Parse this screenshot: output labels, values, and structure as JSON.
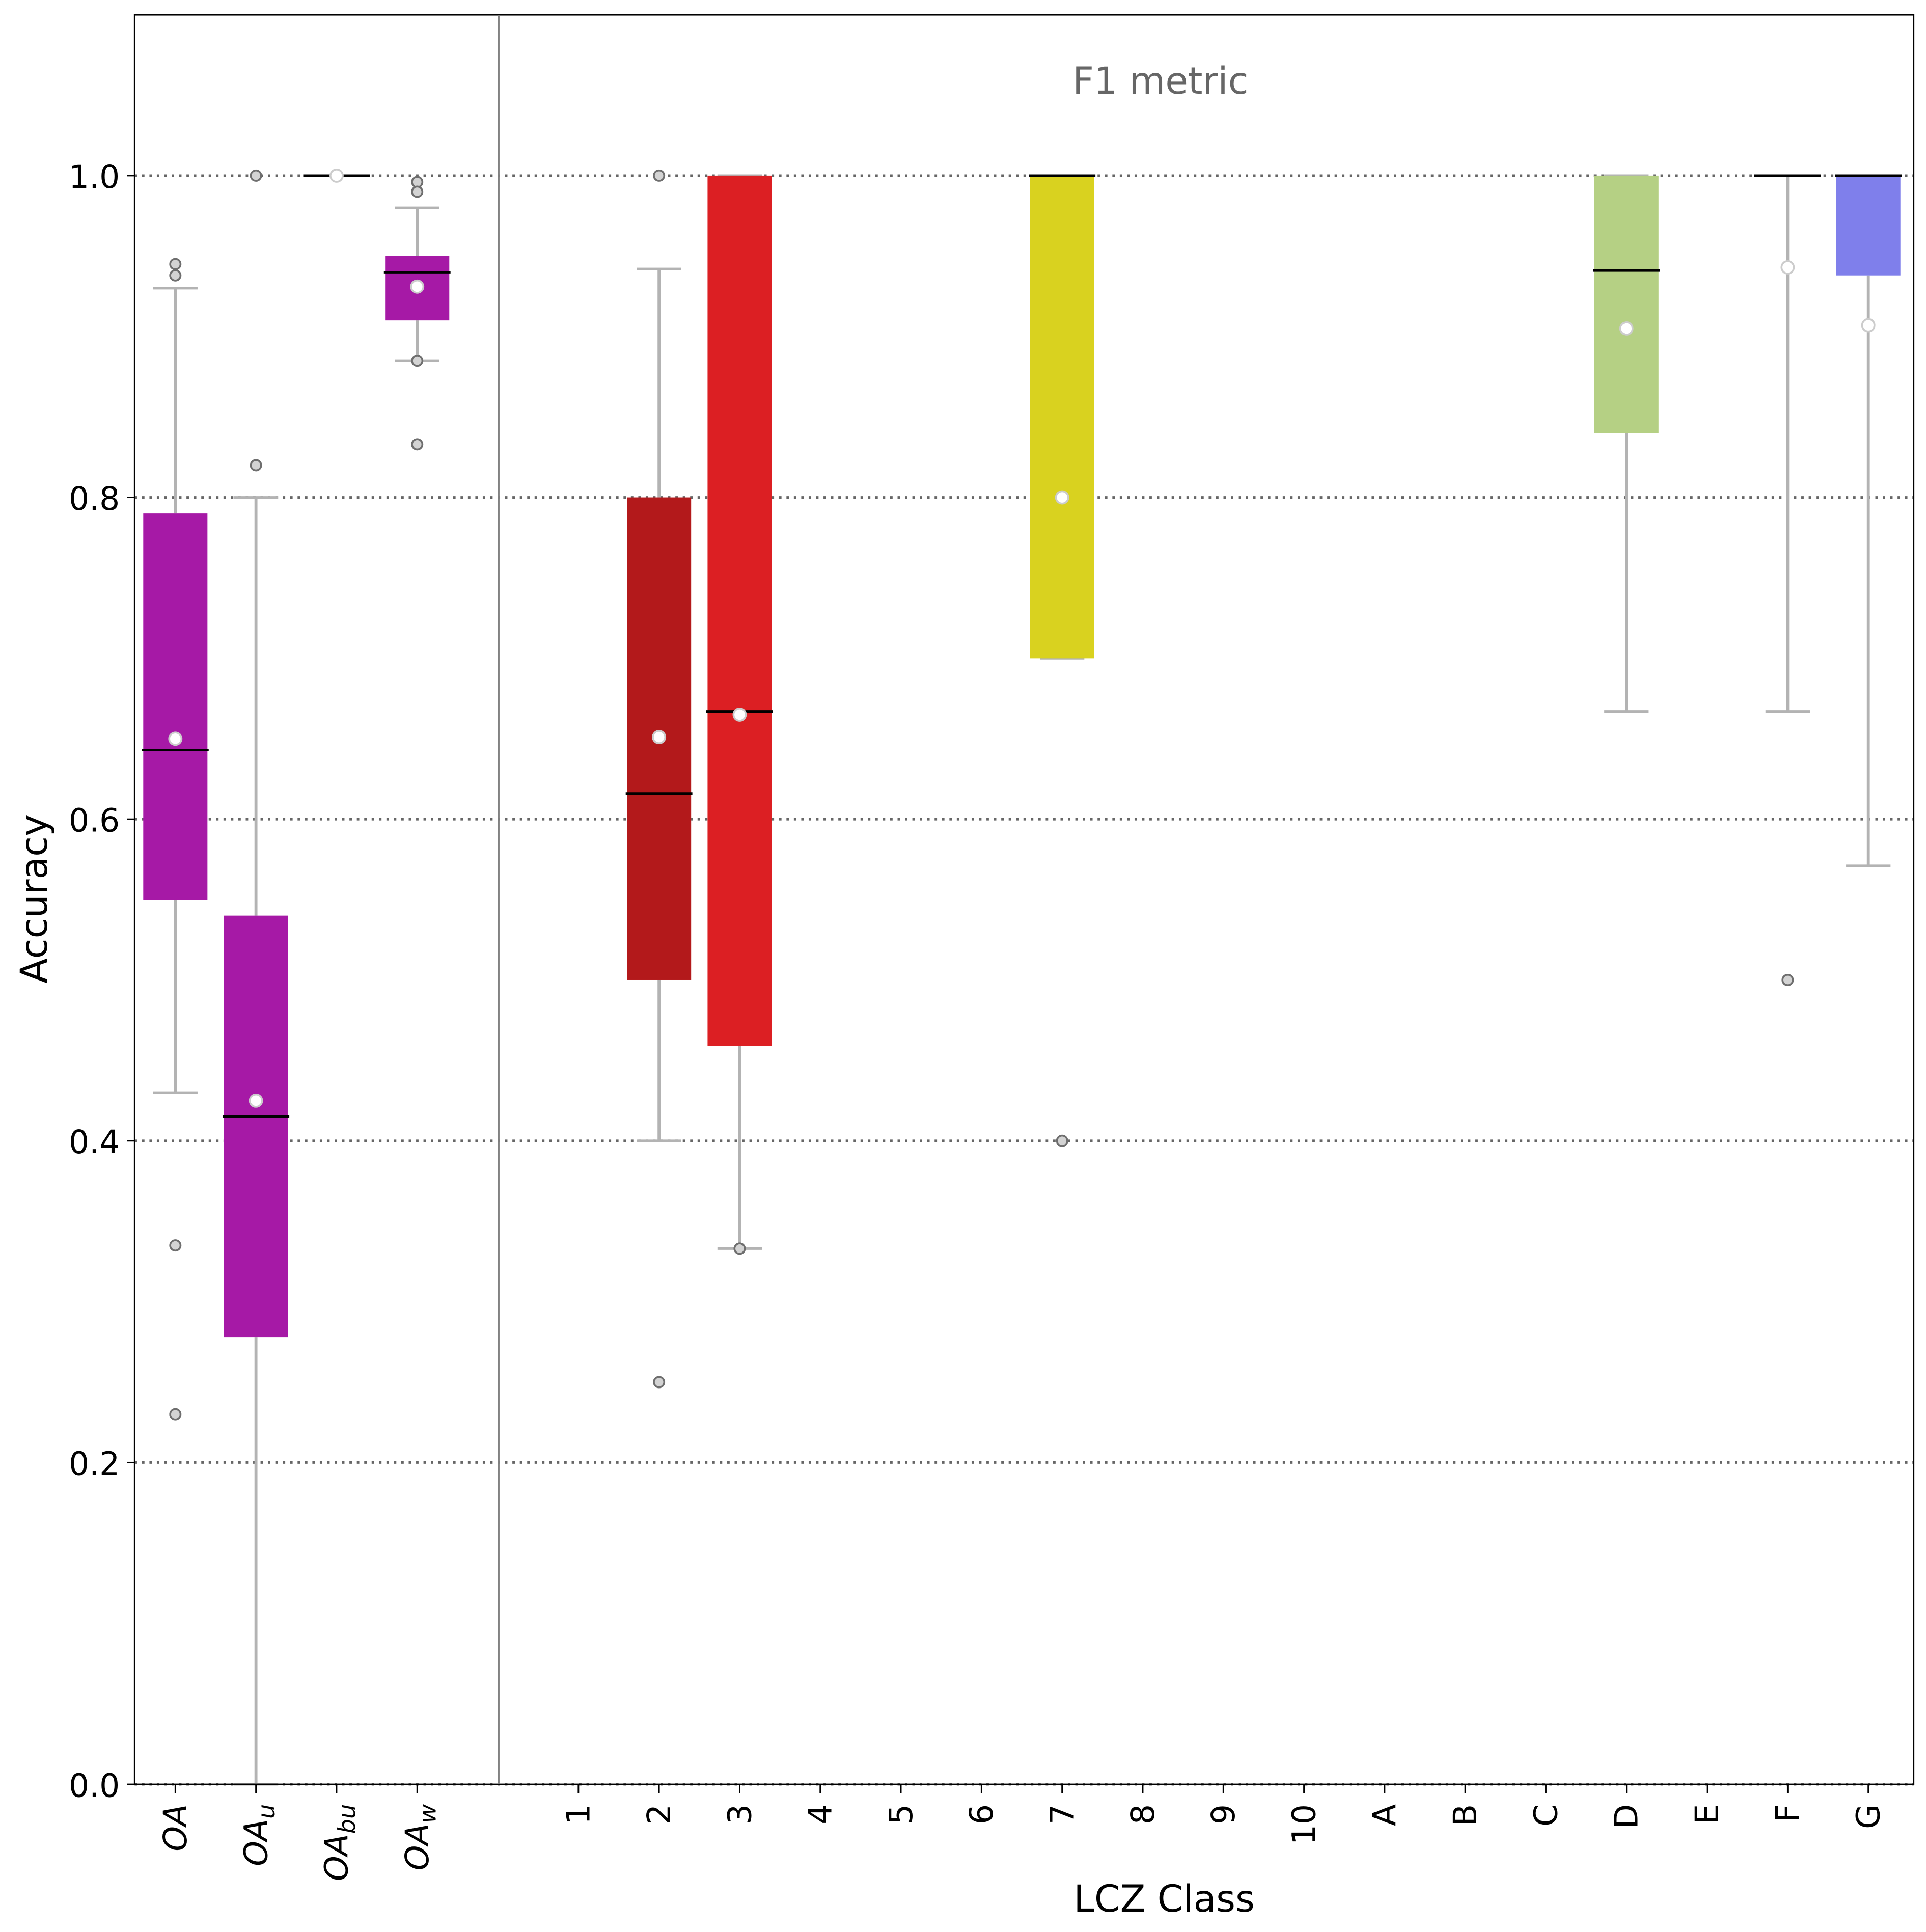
{
  "chart_data": {
    "type": "box",
    "title": "F1 metric",
    "xlabel": "LCZ Class",
    "ylabel": "Accuracy",
    "ylim": [
      0.0,
      1.1
    ],
    "yticks": [
      0.0,
      0.2,
      0.4,
      0.6,
      0.8,
      1.0
    ],
    "ytick_labels": [
      "0.0",
      "0.2",
      "0.4",
      "0.6",
      "0.8",
      "1.0"
    ],
    "grid": "horizontal dotted",
    "groups": [
      {
        "name": "overall",
        "categories": [
          {
            "label": "OA",
            "base": "OA",
            "sub": "",
            "color": "#a619a6",
            "whisker_low": 0.43,
            "q1": 0.55,
            "median": 0.643,
            "q3": 0.79,
            "whisker_high": 0.93,
            "mean": 0.65,
            "outliers": [
              0.945,
              0.938,
              0.335,
              0.23
            ]
          },
          {
            "label": "OAu",
            "base": "OA",
            "sub": "u",
            "color": "#a619a6",
            "whisker_low": 0.0,
            "q1": 0.278,
            "median": 0.415,
            "q3": 0.54,
            "whisker_high": 0.8,
            "mean": 0.425,
            "outliers": [
              1.0,
              0.82
            ]
          },
          {
            "label": "OAbu",
            "base": "OA",
            "sub": "bu",
            "color": "#a619a6",
            "whisker_low": 1.0,
            "q1": 1.0,
            "median": 1.0,
            "q3": 1.0,
            "whisker_high": 1.0,
            "mean": 1.0,
            "outliers": []
          },
          {
            "label": "OAw",
            "base": "OA",
            "sub": "w",
            "color": "#a619a6",
            "whisker_low": 0.885,
            "q1": 0.91,
            "median": 0.94,
            "q3": 0.95,
            "whisker_high": 0.98,
            "mean": 0.931,
            "outliers": [
              0.996,
              0.99,
              0.885,
              0.833
            ]
          }
        ]
      },
      {
        "name": "lcz",
        "categories": [
          {
            "label": "1",
            "color": null
          },
          {
            "label": "2",
            "color": "#b3191b",
            "whisker_low": 0.4,
            "q1": 0.5,
            "median": 0.616,
            "q3": 0.8,
            "whisker_high": 0.942,
            "mean": 0.651,
            "outliers": [
              1.0,
              0.25
            ]
          },
          {
            "label": "3",
            "color": "#dc1f23",
            "whisker_low": 0.333,
            "q1": 0.459,
            "median": 0.667,
            "q3": 1.0,
            "whisker_high": 1.0,
            "mean": 0.665,
            "outliers": [
              0.333
            ]
          },
          {
            "label": "4",
            "color": null
          },
          {
            "label": "5",
            "color": null
          },
          {
            "label": "6",
            "color": null
          },
          {
            "label": "7",
            "color": "#d9d21f",
            "whisker_low": 0.7,
            "q1": 0.7,
            "median": 1.0,
            "q3": 1.0,
            "whisker_high": 1.0,
            "mean": 0.8,
            "outliers": [
              0.4
            ]
          },
          {
            "label": "8",
            "color": null
          },
          {
            "label": "9",
            "color": null
          },
          {
            "label": "10",
            "color": null
          },
          {
            "label": "A",
            "color": null
          },
          {
            "label": "B",
            "color": null
          },
          {
            "label": "C",
            "color": null
          },
          {
            "label": "D",
            "color": "#b5d084",
            "whisker_low": 0.667,
            "q1": 0.84,
            "median": 0.941,
            "q3": 1.0,
            "whisker_high": 1.0,
            "mean": 0.905,
            "outliers": []
          },
          {
            "label": "E",
            "color": null
          },
          {
            "label": "F",
            "color": "#4d4dff",
            "whisker_low": 0.667,
            "q1": 1.0,
            "median": 1.0,
            "q3": 1.0,
            "whisker_high": 1.0,
            "mean": 0.943,
            "outliers": [
              0.5
            ]
          },
          {
            "label": "G",
            "color": "#7f7feb",
            "whisker_low": 0.571,
            "q1": 0.938,
            "median": 1.0,
            "q3": 1.0,
            "whisker_high": 1.0,
            "mean": 0.907,
            "outliers": []
          }
        ]
      }
    ]
  }
}
